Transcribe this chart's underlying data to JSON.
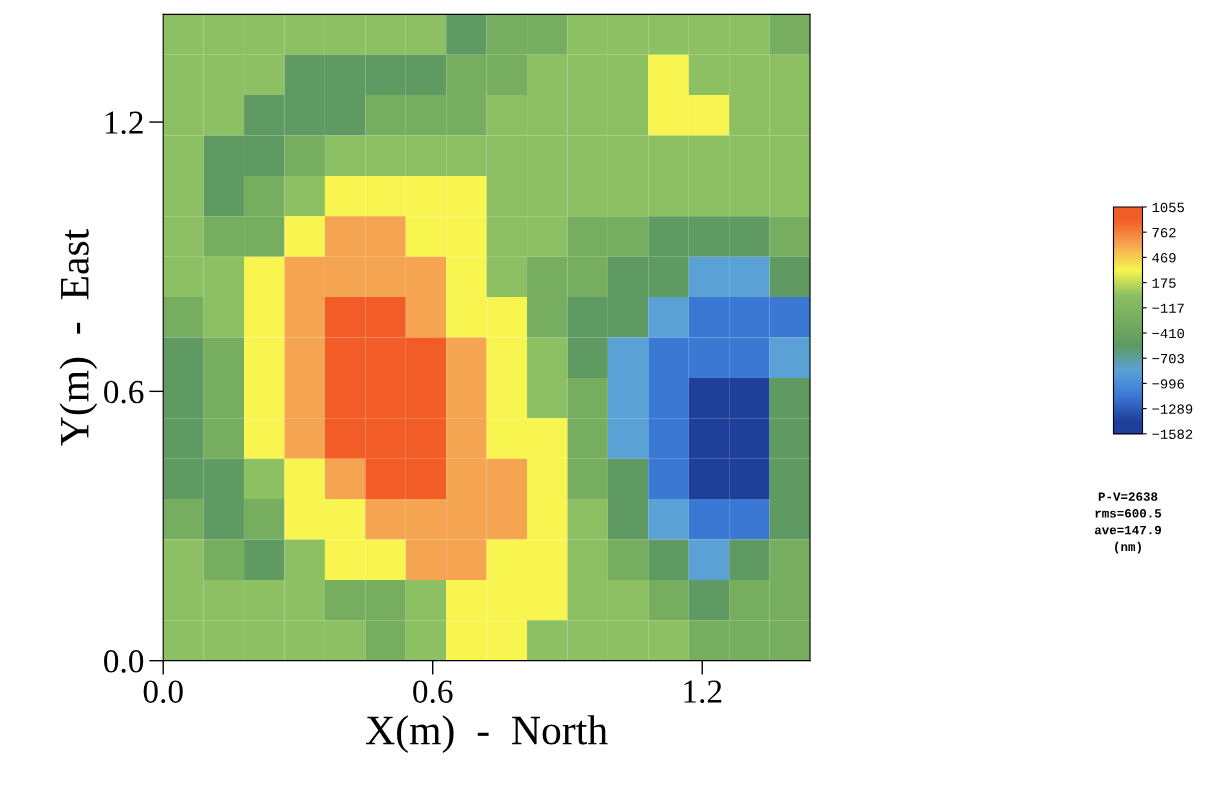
{
  "chart_data": {
    "type": "heatmap",
    "xlabel": "X(m)  -  North",
    "ylabel": "Y(m)  -  East",
    "x": [
      0.045,
      0.135,
      0.225,
      0.315,
      0.405,
      0.495,
      0.585,
      0.675,
      0.765,
      0.855,
      0.945,
      1.035,
      1.125,
      1.215,
      1.305,
      1.395
    ],
    "y": [
      1.395,
      1.305,
      1.215,
      1.125,
      1.035,
      0.945,
      0.855,
      0.765,
      0.675,
      0.585,
      0.495,
      0.405,
      0.315,
      0.225,
      0.135,
      0.045
    ],
    "xlim": [
      0,
      1.44
    ],
    "ylim": [
      0,
      1.44
    ],
    "xticks": [
      {
        "value": 0,
        "label": "0.0"
      },
      {
        "value": 0.6,
        "label": "0.6"
      },
      {
        "value": 1.2,
        "label": "1.2"
      }
    ],
    "yticks": [
      {
        "value": 0,
        "label": "0.0"
      },
      {
        "value": 0.6,
        "label": "0.6"
      },
      {
        "value": 1.2,
        "label": "1.2"
      }
    ],
    "clim": [
      -1582,
      1055
    ],
    "cticks": [
      -1582,
      -1289,
      -996,
      -703,
      -410,
      -117,
      175,
      469,
      762,
      1055
    ],
    "colors": [
      "#1f3f98",
      "#3b78d4",
      "#5aa2d6",
      "#5e9a62",
      "#76ad5f",
      "#8cc063",
      "#f8f550",
      "#f5a551",
      "#f25c27"
    ],
    "cells": [
      [
        29,
        29,
        29,
        29,
        29,
        29,
        29,
        -557,
        -264,
        -264,
        29,
        29,
        29,
        29,
        29,
        -264
      ],
      [
        29,
        29,
        29,
        -557,
        -557,
        -557,
        -557,
        -264,
        -264,
        29,
        29,
        29,
        322,
        29,
        29,
        29
      ],
      [
        29,
        29,
        -557,
        -557,
        -557,
        -264,
        -264,
        -264,
        29,
        29,
        29,
        29,
        322,
        322,
        29,
        29
      ],
      [
        29,
        -557,
        -557,
        -264,
        29,
        29,
        29,
        29,
        29,
        29,
        29,
        29,
        29,
        29,
        29,
        29
      ],
      [
        29,
        -557,
        -264,
        29,
        322,
        322,
        322,
        322,
        29,
        29,
        29,
        29,
        29,
        29,
        29,
        29
      ],
      [
        29,
        -264,
        -264,
        322,
        616,
        616,
        322,
        322,
        29,
        29,
        -264,
        -264,
        -557,
        -557,
        -557,
        -264
      ],
      [
        29,
        29,
        322,
        616,
        616,
        616,
        616,
        322,
        29,
        -264,
        -264,
        -557,
        -557,
        -850,
        -850,
        -557
      ],
      [
        -264,
        29,
        322,
        616,
        909,
        909,
        616,
        322,
        322,
        -264,
        -557,
        -557,
        -850,
        -1143,
        -1143,
        -1143
      ],
      [
        -557,
        -264,
        322,
        616,
        909,
        909,
        909,
        616,
        322,
        29,
        -557,
        -850,
        -1143,
        -1143,
        -1143,
        -850
      ],
      [
        -557,
        -264,
        322,
        616,
        909,
        909,
        909,
        616,
        322,
        29,
        -264,
        -850,
        -1143,
        -1436,
        -1436,
        -557
      ],
      [
        -557,
        -264,
        322,
        616,
        909,
        909,
        909,
        616,
        322,
        322,
        -264,
        -850,
        -1143,
        -1436,
        -1436,
        -557
      ],
      [
        -557,
        -557,
        29,
        322,
        616,
        909,
        909,
        616,
        616,
        322,
        -264,
        -557,
        -1143,
        -1436,
        -1436,
        -557
      ],
      [
        -264,
        -557,
        -264,
        322,
        322,
        616,
        616,
        616,
        616,
        322,
        29,
        -557,
        -850,
        -1143,
        -1143,
        -557
      ],
      [
        29,
        -264,
        -557,
        29,
        322,
        322,
        616,
        616,
        322,
        322,
        29,
        -264,
        -557,
        -850,
        -557,
        -264
      ],
      [
        29,
        29,
        29,
        29,
        -264,
        -264,
        29,
        322,
        322,
        322,
        29,
        29,
        -264,
        -557,
        -264,
        -264
      ],
      [
        29,
        29,
        29,
        29,
        29,
        -264,
        29,
        322,
        322,
        29,
        29,
        29,
        29,
        -264,
        -264,
        -264
      ]
    ],
    "annotations": [
      "P-V=2638",
      "rms=600.5",
      "ave=147.9",
      "(nm)"
    ]
  }
}
